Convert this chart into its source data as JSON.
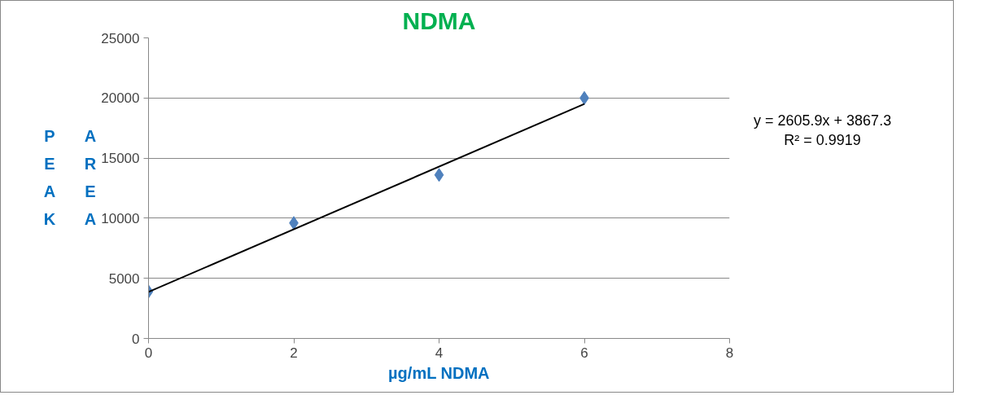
{
  "chart_data": {
    "type": "scatter",
    "title": "NDMA",
    "xlabel": "µg/mL NDMA",
    "ylabel": "PEAK AREA",
    "xlim": [
      0,
      8
    ],
    "xticks": [
      0,
      2,
      4,
      6,
      8
    ],
    "ylim": [
      0,
      25000
    ],
    "yticks": [
      0,
      5000,
      10000,
      15000,
      20000,
      25000
    ],
    "grid": "y",
    "series": [
      {
        "color": "#4f81bd",
        "marker": "diamond",
        "x": [
          0,
          2,
          4,
          6
        ],
        "values": [
          3900,
          9600,
          13600,
          20000
        ]
      },
      {
        "type": "line",
        "color": "#000000",
        "x": [
          0,
          6
        ],
        "values": [
          3870,
          19500
        ]
      }
    ],
    "annotations": [
      "y = 2605.9x + 3867.3",
      "R² = 0.9919"
    ]
  }
}
